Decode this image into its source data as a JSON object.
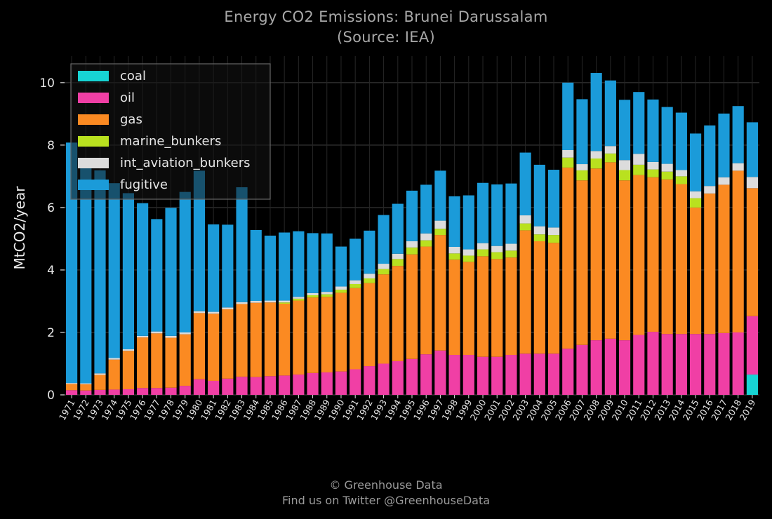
{
  "footer": {
    "copyright": "© Greenhouse Data",
    "twitter": "Find us on Twitter @GreenhouseData"
  },
  "chart_data": {
    "type": "bar",
    "stacked": true,
    "title": "Energy CO2 Emissions: Brunei Darussalam",
    "subtitle": "(Source: IEA)",
    "xlabel": "",
    "ylabel": "MtCO2/year",
    "ylim": [
      0,
      10.85
    ],
    "yticks": [
      0,
      2,
      4,
      6,
      8,
      10
    ],
    "grid": true,
    "legend": "top-left",
    "categories": [
      "1971",
      "1972",
      "1973",
      "1974",
      "1975",
      "1976",
      "1977",
      "1978",
      "1979",
      "1980",
      "1981",
      "1982",
      "1983",
      "1984",
      "1985",
      "1986",
      "1987",
      "1988",
      "1989",
      "1990",
      "1991",
      "1992",
      "1993",
      "1994",
      "1995",
      "1996",
      "1997",
      "1998",
      "1999",
      "2000",
      "2001",
      "2002",
      "2003",
      "2004",
      "2005",
      "2006",
      "2007",
      "2008",
      "2009",
      "2010",
      "2011",
      "2012",
      "2013",
      "2014",
      "2015",
      "2016",
      "2017",
      "2018",
      "2019"
    ],
    "series": [
      {
        "name": "coal",
        "color": "#17d4d4",
        "values": [
          0,
          0,
          0,
          0,
          0,
          0,
          0,
          0,
          0,
          0,
          0,
          0,
          0,
          0,
          0,
          0,
          0,
          0,
          0,
          0,
          0,
          0,
          0,
          0,
          0,
          0,
          0,
          0,
          0,
          0,
          0,
          0,
          0,
          0,
          0,
          0,
          0,
          0,
          0,
          0,
          0,
          0,
          0,
          0,
          0,
          0,
          0,
          0,
          0.65
        ]
      },
      {
        "name": "oil",
        "color": "#f03fa5",
        "values": [
          0.15,
          0.14,
          0.16,
          0.17,
          0.18,
          0.22,
          0.22,
          0.23,
          0.29,
          0.5,
          0.45,
          0.52,
          0.58,
          0.57,
          0.6,
          0.62,
          0.65,
          0.7,
          0.72,
          0.75,
          0.82,
          0.92,
          1.0,
          1.08,
          1.15,
          1.3,
          1.42,
          1.28,
          1.28,
          1.22,
          1.22,
          1.28,
          1.32,
          1.32,
          1.32,
          1.48,
          1.6,
          1.75,
          1.8,
          1.75,
          1.92,
          2.02,
          1.95,
          1.95,
          1.95,
          1.95,
          1.98,
          2.0,
          1.87
        ]
      },
      {
        "name": "gas",
        "color": "#fb8a22",
        "values": [
          0.2,
          0.2,
          0.48,
          0.96,
          1.23,
          1.62,
          1.75,
          1.6,
          1.65,
          2.12,
          2.15,
          2.22,
          2.33,
          2.38,
          2.36,
          2.3,
          2.37,
          2.42,
          2.42,
          2.52,
          2.6,
          2.66,
          2.86,
          3.05,
          3.35,
          3.45,
          3.7,
          3.05,
          2.98,
          3.22,
          3.13,
          3.12,
          3.95,
          3.6,
          3.55,
          5.8,
          5.27,
          5.5,
          5.65,
          5.12,
          5.12,
          4.95,
          4.95,
          4.8,
          4.05,
          4.5,
          4.75,
          5.18,
          4.1
        ]
      },
      {
        "name": "marine_bunkers",
        "color": "#b9e11f",
        "values": [
          0,
          0,
          0,
          0,
          0,
          0,
          0,
          0,
          0,
          0,
          0,
          0,
          0,
          0,
          0,
          0.04,
          0.06,
          0.07,
          0.08,
          0.1,
          0.13,
          0.15,
          0.17,
          0.22,
          0.22,
          0.2,
          0.2,
          0.2,
          0.2,
          0.22,
          0.22,
          0.22,
          0.22,
          0.22,
          0.25,
          0.32,
          0.32,
          0.32,
          0.28,
          0.33,
          0.33,
          0.25,
          0.25,
          0.25,
          0.3,
          0,
          0,
          0,
          0
        ]
      },
      {
        "name": "int_aviation_bunkers",
        "color": "#dcdcdc",
        "values": [
          0.03,
          0.03,
          0.05,
          0.05,
          0.05,
          0.05,
          0.06,
          0.06,
          0.06,
          0.06,
          0.06,
          0.06,
          0.06,
          0.06,
          0.06,
          0.06,
          0.06,
          0.07,
          0.08,
          0.1,
          0.12,
          0.15,
          0.17,
          0.17,
          0.2,
          0.22,
          0.26,
          0.21,
          0.2,
          0.2,
          0.2,
          0.22,
          0.26,
          0.26,
          0.24,
          0.24,
          0.2,
          0.24,
          0.24,
          0.32,
          0.35,
          0.24,
          0.25,
          0.2,
          0.22,
          0.24,
          0.24,
          0.24,
          0.36
        ]
      },
      {
        "name": "fugitive",
        "color": "#1b9bd9",
        "values": [
          7.7,
          7.0,
          6.5,
          5.6,
          5.0,
          4.25,
          3.6,
          4.1,
          4.5,
          4.5,
          2.8,
          2.65,
          3.68,
          2.27,
          2.08,
          2.18,
          2.1,
          1.92,
          1.87,
          1.28,
          1.33,
          1.38,
          1.56,
          1.6,
          1.62,
          1.56,
          1.6,
          1.62,
          1.73,
          1.93,
          1.97,
          1.93,
          2.01,
          1.97,
          1.85,
          2.16,
          2.08,
          2.5,
          2.1,
          1.93,
          1.98,
          2.0,
          1.82,
          1.84,
          1.85,
          1.94,
          2.04,
          1.83,
          1.75
        ]
      }
    ]
  }
}
